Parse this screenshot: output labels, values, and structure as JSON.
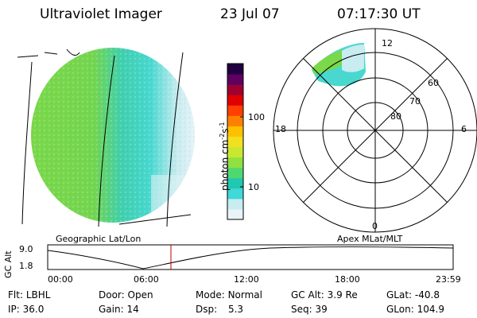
{
  "header": {
    "instrument": "Ultraviolet Imager",
    "date": "23 Jul 07",
    "time": "07:17:30 UT"
  },
  "colorbar": {
    "label": "photon cm",
    "label_exp1": "-2",
    "label_mid": "s",
    "label_exp2": "-1",
    "ticks": [
      "100",
      "10"
    ],
    "colors": [
      "#e8f4f8",
      "#c8ecf0",
      "#40d8d8",
      "#20c8b0",
      "#50d870",
      "#90e040",
      "#c8e830",
      "#f0e020",
      "#ffc000",
      "#ff8000",
      "#ff4000",
      "#e00000",
      "#a00030",
      "#600060",
      "#200040"
    ]
  },
  "polar_plot": {
    "mlt_labels": [
      "12",
      "18",
      "6",
      "0"
    ],
    "mlat_labels": [
      "60",
      "70",
      "80"
    ]
  },
  "plot_labels": {
    "left": "Geographic Lat/Lon",
    "right": "Apex MLat/MLT"
  },
  "altitude_plot": {
    "axis_label": "GC Alt",
    "y_ticks": [
      "9.0",
      "1.8"
    ],
    "x_ticks": [
      "00:00",
      "06:00",
      "12:00",
      "18:00",
      "23:59"
    ],
    "current_time_fraction": 0.304
  },
  "status": {
    "flt_label": "Flt:",
    "flt_value": "LBHL",
    "ip_label": "IP:",
    "ip_value": "36.0",
    "door_label": "Door:",
    "door_value": "Open",
    "gain_label": "Gain:",
    "gain_value": "14",
    "mode_label": "Mode:",
    "mode_value": "Normal",
    "dsp_label": "Dsp:",
    "dsp_value": "5.3",
    "gcalt_label": "GC Alt:",
    "gcalt_value": "3.9 Re",
    "seq_label": "Seq:",
    "seq_value": "39",
    "glat_label": "GLat:",
    "glat_value": "-40.8",
    "glon_label": "GLon:",
    "glon_value": "104.9"
  }
}
